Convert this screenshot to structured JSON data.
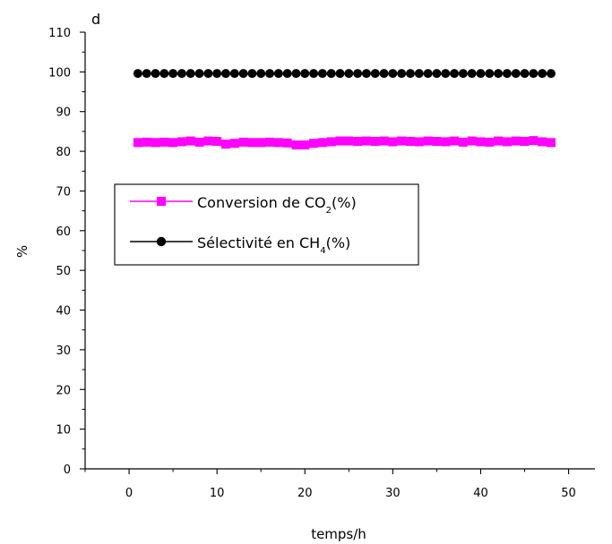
{
  "chart_data": {
    "type": "scatter",
    "panel_label": "d",
    "title": "",
    "xlabel": "temps/h",
    "ylabel": "%",
    "xlim": [
      -5,
      53
    ],
    "ylim": [
      0,
      110
    ],
    "xticks": [
      0,
      10,
      20,
      30,
      40,
      50
    ],
    "yticks": [
      0,
      10,
      20,
      30,
      40,
      50,
      60,
      70,
      80,
      90,
      100,
      110
    ],
    "x_tick_labels": [
      "0",
      "10",
      "20",
      "30",
      "40",
      "50"
    ],
    "y_tick_labels": [
      "0",
      "10",
      "20",
      "30",
      "40",
      "50",
      "60",
      "70",
      "80",
      "90",
      "100",
      "110"
    ],
    "grid": false,
    "legend_position": "center-left",
    "x": [
      1,
      2,
      3,
      4,
      5,
      6,
      7,
      8,
      9,
      10,
      11,
      12,
      13,
      14,
      15,
      16,
      17,
      18,
      19,
      20,
      21,
      22,
      23,
      24,
      25,
      26,
      27,
      28,
      29,
      30,
      31,
      32,
      33,
      34,
      35,
      36,
      37,
      38,
      39,
      40,
      41,
      42,
      43,
      44,
      45,
      46,
      47,
      48
    ],
    "series": [
      {
        "name_main": "Conversion de CO",
        "name_sub": "2",
        "name_suffix": "(%)",
        "color": "#ff00ff",
        "marker": "square",
        "values": [
          82.2,
          82.3,
          82.2,
          82.3,
          82.2,
          82.4,
          82.6,
          82.3,
          82.6,
          82.5,
          81.8,
          82.0,
          82.3,
          82.2,
          82.2,
          82.3,
          82.2,
          82.1,
          81.6,
          81.6,
          82.0,
          82.2,
          82.4,
          82.6,
          82.6,
          82.5,
          82.6,
          82.5,
          82.6,
          82.4,
          82.6,
          82.5,
          82.4,
          82.6,
          82.5,
          82.4,
          82.6,
          82.3,
          82.6,
          82.4,
          82.3,
          82.6,
          82.4,
          82.6,
          82.5,
          82.7,
          82.4,
          82.2
        ]
      },
      {
        "name_main": "Sélectivité en CH",
        "name_sub": "4",
        "name_suffix": "(%)",
        "color": "#000000",
        "marker": "circle",
        "values": [
          99.6,
          99.6,
          99.6,
          99.6,
          99.6,
          99.6,
          99.6,
          99.6,
          99.6,
          99.6,
          99.6,
          99.6,
          99.6,
          99.6,
          99.6,
          99.6,
          99.6,
          99.6,
          99.6,
          99.6,
          99.6,
          99.6,
          99.6,
          99.6,
          99.6,
          99.6,
          99.6,
          99.6,
          99.6,
          99.6,
          99.6,
          99.6,
          99.6,
          99.6,
          99.6,
          99.6,
          99.6,
          99.6,
          99.6,
          99.6,
          99.6,
          99.6,
          99.6,
          99.6,
          99.6,
          99.6,
          99.6,
          99.6
        ]
      }
    ]
  }
}
